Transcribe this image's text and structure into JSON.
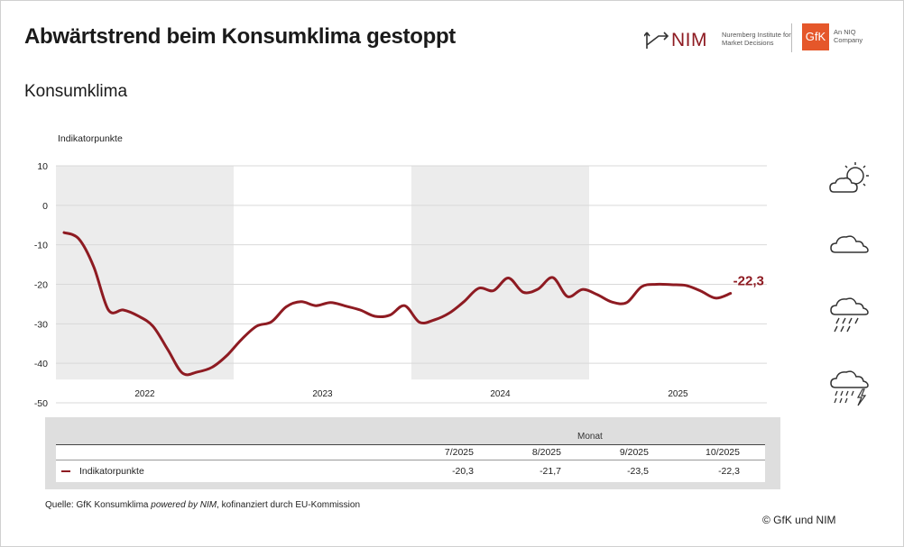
{
  "header": {
    "title": "Abwärtstrend beim Konsumklima gestoppt",
    "subtitle": "Konsumklima"
  },
  "logos": {
    "nim_text": "NIM",
    "nim_sub": "Nuremberg Institute for Market Decisions",
    "gfk_text": "GfK",
    "gfk_sub": "An NIQ Company"
  },
  "colors": {
    "series": "#8e1b22",
    "shade": "#ececec",
    "grid": "#d9d9d9"
  },
  "chart_data": {
    "type": "line",
    "ylabel": "Indikatorpunkte",
    "ylim": [
      -50,
      10
    ],
    "yticks": [
      10,
      0,
      -10,
      -20,
      -30,
      -40,
      -50
    ],
    "year_labels": [
      "2022",
      "2023",
      "2024",
      "2025"
    ],
    "shaded_years": [
      "2022",
      "2024"
    ],
    "grid": true,
    "end_label": "-22,3",
    "series": [
      {
        "name": "Indikatorpunkte",
        "x": [
          "1/2022",
          "2/2022",
          "3/2022",
          "4/2022",
          "5/2022",
          "6/2022",
          "7/2022",
          "8/2022",
          "9/2022",
          "10/2022",
          "11/2022",
          "12/2022",
          "1/2023",
          "2/2023",
          "3/2023",
          "4/2023",
          "5/2023",
          "6/2023",
          "7/2023",
          "8/2023",
          "9/2023",
          "10/2023",
          "11/2023",
          "12/2023",
          "1/2024",
          "2/2024",
          "3/2024",
          "4/2024",
          "5/2024",
          "6/2024",
          "7/2024",
          "8/2024",
          "9/2024",
          "10/2024",
          "11/2024",
          "12/2024",
          "1/2025",
          "2/2025",
          "3/2025",
          "4/2025",
          "5/2025",
          "6/2025",
          "7/2025",
          "8/2025",
          "9/2025",
          "10/2025"
        ],
        "values": [
          -6.9,
          -8.5,
          -15.5,
          -26.5,
          -26.5,
          -28.0,
          -30.6,
          -36.5,
          -42.5,
          -42.2,
          -41.0,
          -38.0,
          -33.9,
          -30.6,
          -29.5,
          -25.7,
          -24.4,
          -25.4,
          -24.6,
          -25.5,
          -26.5,
          -28.1,
          -27.8,
          -25.4,
          -29.6,
          -29.0,
          -27.3,
          -24.4,
          -21.0,
          -21.6,
          -18.4,
          -22.0,
          -21.2,
          -18.3,
          -23.1,
          -21.3,
          -22.6,
          -24.5,
          -24.6,
          -20.6,
          -20.0,
          -20.1,
          -20.3,
          -21.7,
          -23.5,
          -22.3
        ]
      }
    ]
  },
  "table": {
    "monat_label": "Monat",
    "columns": [
      "7/2025",
      "8/2025",
      "9/2025",
      "10/2025"
    ],
    "row_label": "Indikatorpunkte",
    "values": [
      "-20,3",
      "-21,7",
      "-23,5",
      "-22,3"
    ]
  },
  "footer": {
    "source_prefix": "Quelle: GfK Konsumklima ",
    "source_italic": "powered by NIM",
    "source_suffix": ", kofinanziert durch EU-Kommission",
    "copyright": "© GfK und NIM"
  },
  "weather_icons": [
    "sun-cloud-icon",
    "cloud-icon",
    "rain-cloud-icon",
    "storm-cloud-icon"
  ]
}
